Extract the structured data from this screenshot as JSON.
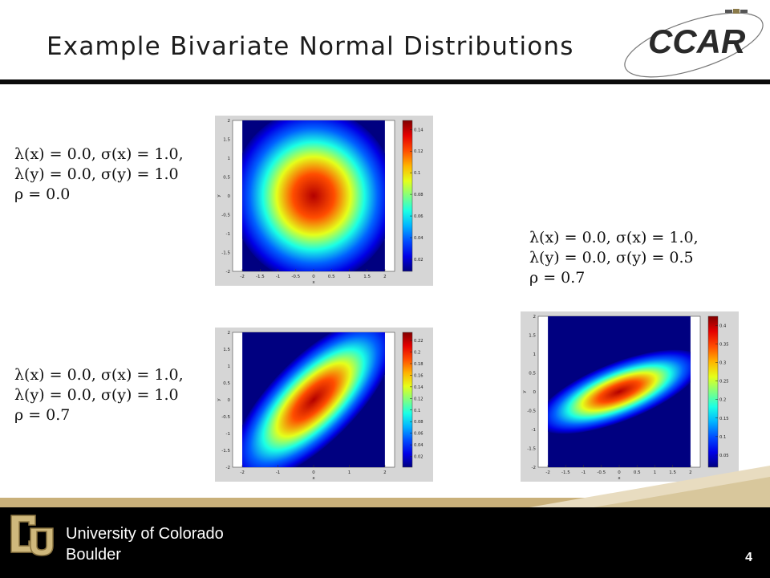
{
  "slide": {
    "title": "Example Bivariate Normal Distributions",
    "page_number": "4",
    "logo_text": "CCAR",
    "university": [
      "University of Colorado",
      "Boulder"
    ]
  },
  "plots": [
    {
      "params": [
        "λ(x) = 0.0,  σ(x) = 1.0,",
        "λ(y) = 0.0,  σ(y) = 1.0",
        "ρ = 0.0"
      ],
      "rho": 0.0,
      "sx": 1.0,
      "sy": 1.0,
      "xticks": [
        "-2",
        "-1.5",
        "-1",
        "-0.5",
        "0",
        "0.5",
        "1",
        "1.5",
        "2"
      ],
      "yticks": [
        "2",
        "1.5",
        "1",
        "0.5",
        "0",
        "-0.5",
        "-1",
        "-1.5",
        "-2"
      ],
      "cticks": [
        "0.14",
        "0.12",
        "0.1",
        "0.08",
        "0.06",
        "0.04",
        "0.02"
      ],
      "xlabel": "x",
      "ylabel": "y"
    },
    {
      "params": [
        "λ(x) = 0.0,  σ(x) = 1.0,",
        "λ(y) = 0.0,  σ(y) = 1.0",
        "ρ = 0.7"
      ],
      "rho": 0.7,
      "sx": 1.0,
      "sy": 1.0,
      "xticks": [
        "-2",
        "-1",
        "0",
        "1",
        "2"
      ],
      "yticks": [
        "2",
        "1.5",
        "1",
        "0.5",
        "0",
        "-0.5",
        "-1",
        "-1.5",
        "-2"
      ],
      "cticks": [
        "0.22",
        "0.2",
        "0.18",
        "0.16",
        "0.14",
        "0.12",
        "0.1",
        "0.08",
        "0.06",
        "0.04",
        "0.02"
      ],
      "xlabel": "x",
      "ylabel": "y"
    },
    {
      "params": [
        "λ(x) = 0.0,  σ(x) = 1.0,",
        "λ(y) = 0.0,  σ(y) = 0.5",
        "ρ = 0.7"
      ],
      "rho": 0.7,
      "sx": 1.0,
      "sy": 0.5,
      "xticks": [
        "-2",
        "-1.5",
        "-1",
        "-0.5",
        "0",
        "0.5",
        "1",
        "1.5",
        "2"
      ],
      "yticks": [
        "2",
        "1.5",
        "1",
        "0.5",
        "0",
        "-0.5",
        "-1",
        "-1.5",
        "-2"
      ],
      "cticks": [
        "0.4",
        "0.35",
        "0.3",
        "0.25",
        "0.2",
        "0.15",
        "0.1",
        "0.05"
      ],
      "xlabel": "x",
      "ylabel": "y"
    }
  ],
  "colors": {
    "title_rule": "#0b0b0b",
    "footer_bg": "#000000",
    "gold": "#c9b07a",
    "plot_bg": "#d6d6d6"
  }
}
